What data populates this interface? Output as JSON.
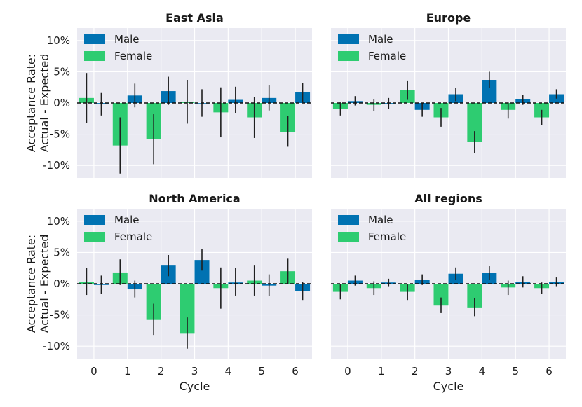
{
  "chart_data": [
    {
      "type": "bar",
      "title": "East Asia",
      "categories": [
        "0",
        "1",
        "2",
        "3",
        "4",
        "5",
        "6"
      ],
      "xlabel": "",
      "ylabel": "Acceptance Rate:\nActual - Expected",
      "ylim": [
        -12,
        12
      ],
      "yticks": [
        "10%",
        "5%",
        "0%",
        "-5%",
        "-10%"
      ],
      "legend": [
        "Male",
        "Female"
      ],
      "series": [
        {
          "name": "Female",
          "color": "#2ecc71",
          "values": [
            0.8,
            -6.8,
            -5.8,
            0.2,
            -1.5,
            -2.3,
            -4.6
          ],
          "err_low": [
            -3.2,
            -11.3,
            -9.8,
            -3.3,
            -5.5,
            -5.6,
            -7.0
          ],
          "err_high": [
            4.8,
            -2.3,
            -1.8,
            3.7,
            2.5,
            0.9,
            -2.1
          ]
        },
        {
          "name": "Male",
          "color": "#0072b2",
          "values": [
            -0.1,
            1.2,
            1.9,
            0.0,
            0.5,
            0.8,
            1.7
          ],
          "err_low": [
            -2.0,
            -0.7,
            -0.3,
            -2.2,
            -1.6,
            -1.2,
            0.2
          ],
          "err_high": [
            1.6,
            3.1,
            4.2,
            2.2,
            2.6,
            2.8,
            3.2
          ]
        }
      ]
    },
    {
      "type": "bar",
      "title": "Europe",
      "categories": [
        "0",
        "1",
        "2",
        "3",
        "4",
        "5",
        "6"
      ],
      "xlabel": "",
      "ylabel": "",
      "ylim": [
        -12,
        12
      ],
      "legend": [
        "Male",
        "Female"
      ],
      "series": [
        {
          "name": "Female",
          "color": "#2ecc71",
          "values": [
            -0.9,
            -0.3,
            2.1,
            -2.3,
            -6.2,
            -1.1,
            -2.3
          ],
          "err_low": [
            -2.0,
            -1.3,
            0.5,
            -3.8,
            -8.0,
            -2.5,
            -3.5
          ],
          "err_high": [
            0.1,
            0.6,
            3.6,
            -0.8,
            -4.5,
            0.2,
            -1.1
          ]
        },
        {
          "name": "Male",
          "color": "#0072b2",
          "values": [
            0.3,
            -0.1,
            -1.1,
            1.4,
            3.7,
            0.6,
            1.4
          ],
          "err_low": [
            -0.4,
            -0.9,
            -2.2,
            0.3,
            2.4,
            -0.3,
            0.7
          ],
          "err_high": [
            1.1,
            0.8,
            0.0,
            2.4,
            5.0,
            1.3,
            2.2
          ]
        }
      ]
    },
    {
      "type": "bar",
      "title": "North America",
      "categories": [
        "0",
        "1",
        "2",
        "3",
        "4",
        "5",
        "6"
      ],
      "xlabel": "Cycle",
      "ylabel": "Acceptance Rate:\nActual - Expected",
      "ylim": [
        -12,
        12
      ],
      "yticks": [
        "10%",
        "5%",
        "0%",
        "-5%",
        "-10%"
      ],
      "legend": [
        "Male",
        "Female"
      ],
      "series": [
        {
          "name": "Female",
          "color": "#2ecc71",
          "values": [
            0.3,
            1.8,
            -5.8,
            -8.0,
            -0.7,
            0.5,
            2.0
          ],
          "err_low": [
            -1.8,
            -0.2,
            -8.2,
            -10.4,
            -4.0,
            -1.9,
            -0.1
          ],
          "err_high": [
            2.5,
            3.9,
            -3.2,
            -5.4,
            2.6,
            2.9,
            4.0
          ]
        },
        {
          "name": "Male",
          "color": "#0072b2",
          "values": [
            -0.2,
            -0.9,
            2.9,
            3.8,
            0.2,
            -0.3,
            -1.2
          ],
          "err_low": [
            -1.6,
            -2.2,
            1.2,
            2.1,
            -1.9,
            -2.0,
            -2.6
          ],
          "err_high": [
            1.3,
            0.5,
            4.6,
            5.5,
            2.5,
            1.5,
            0.3
          ]
        }
      ]
    },
    {
      "type": "bar",
      "title": "All regions",
      "categories": [
        "0",
        "1",
        "2",
        "3",
        "4",
        "5",
        "6"
      ],
      "xlabel": "Cycle",
      "ylabel": "",
      "ylim": [
        -12,
        12
      ],
      "legend": [
        "Male",
        "Female"
      ],
      "series": [
        {
          "name": "Female",
          "color": "#2ecc71",
          "values": [
            -1.3,
            -0.7,
            -1.3,
            -3.5,
            -3.8,
            -0.6,
            -0.7
          ],
          "err_low": [
            -2.5,
            -1.8,
            -2.6,
            -4.7,
            -5.2,
            -1.8,
            -1.6
          ],
          "err_high": [
            -0.1,
            0.4,
            0.0,
            -2.2,
            -2.3,
            0.5,
            0.2
          ]
        },
        {
          "name": "Male",
          "color": "#0072b2",
          "values": [
            0.5,
            0.2,
            0.6,
            1.6,
            1.7,
            0.3,
            0.3
          ],
          "err_low": [
            -0.3,
            -0.4,
            -0.2,
            0.6,
            0.6,
            -0.6,
            -0.4
          ],
          "err_high": [
            1.3,
            0.8,
            1.5,
            2.6,
            2.8,
            1.2,
            1.0
          ]
        }
      ]
    }
  ]
}
